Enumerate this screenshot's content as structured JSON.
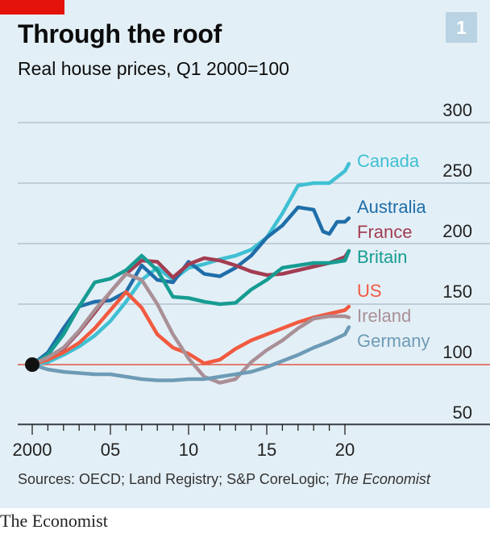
{
  "header": {
    "title": "Through the roof",
    "subtitle": "Real house prices, Q1 2000=100",
    "badge": "1"
  },
  "footer": {
    "source_prefix": "Sources: OECD; Land Registry; S&P CoreLogic; ",
    "source_italic": "The Economist",
    "brand": "The Economist"
  },
  "colors": {
    "panel": "#e3eff6",
    "accent_red": "#e3120b",
    "gridline": "#a8bac6",
    "baseline": "#e05545"
  },
  "chart_data": {
    "type": "line",
    "title": "Through the roof",
    "subtitle": "Real house prices, Q1 2000=100",
    "xlim": [
      2000,
      2021
    ],
    "ylim": [
      50,
      300
    ],
    "y_ticks": [
      50,
      100,
      150,
      200,
      250,
      300
    ],
    "x_ticks": [
      {
        "value": 2000,
        "label": "2000"
      },
      {
        "value": 2005,
        "label": "05"
      },
      {
        "value": 2010,
        "label": "10"
      },
      {
        "value": 2015,
        "label": "15"
      },
      {
        "value": 2020,
        "label": "20"
      }
    ],
    "baseline": 100,
    "start_point": {
      "x": 2000,
      "y": 100
    },
    "series": [
      {
        "name": "Canada",
        "color": "#3fc0d3",
        "x": [
          2000,
          2001,
          2002,
          2003,
          2004,
          2005,
          2006,
          2007,
          2008,
          2009,
          2010,
          2011,
          2012,
          2013,
          2014,
          2015,
          2016,
          2017,
          2018,
          2019,
          2020,
          2020.25
        ],
        "y": [
          100,
          102,
          108,
          115,
          124,
          136,
          152,
          170,
          180,
          170,
          180,
          183,
          187,
          190,
          195,
          205,
          225,
          248,
          250,
          250,
          260,
          266
        ]
      },
      {
        "name": "Australia",
        "color": "#1f6ea9",
        "x": [
          2000,
          2001,
          2002,
          2003,
          2004,
          2005,
          2006,
          2007,
          2008,
          2009,
          2010,
          2011,
          2012,
          2013,
          2014,
          2015,
          2016,
          2017,
          2018,
          2018.6,
          2019,
          2019.5,
          2020,
          2020.25
        ],
        "y": [
          100,
          110,
          130,
          148,
          152,
          153,
          160,
          182,
          170,
          168,
          185,
          175,
          173,
          180,
          190,
          205,
          215,
          230,
          228,
          210,
          208,
          218,
          218,
          221
        ]
      },
      {
        "name": "France",
        "color": "#a33d52",
        "x": [
          2000,
          2001,
          2002,
          2003,
          2004,
          2005,
          2006,
          2007,
          2008,
          2009,
          2010,
          2011,
          2012,
          2013,
          2014,
          2015,
          2016,
          2017,
          2018,
          2019,
          2020,
          2020.25
        ],
        "y": [
          100,
          105,
          113,
          127,
          143,
          160,
          175,
          186,
          185,
          172,
          183,
          188,
          186,
          182,
          177,
          174,
          175,
          178,
          181,
          184,
          189,
          194
        ]
      },
      {
        "name": "Britain",
        "color": "#169c92",
        "x": [
          2000,
          2001,
          2002,
          2003,
          2004,
          2005,
          2006,
          2007,
          2008,
          2009,
          2010,
          2011,
          2012,
          2013,
          2014,
          2015,
          2016,
          2017,
          2018,
          2019,
          2020,
          2020.25
        ],
        "y": [
          100,
          108,
          125,
          148,
          168,
          171,
          178,
          190,
          178,
          156,
          155,
          152,
          150,
          151,
          162,
          170,
          180,
          182,
          184,
          184,
          186,
          194
        ]
      },
      {
        "name": "US",
        "color": "#f15a40",
        "x": [
          2000,
          2001,
          2002,
          2003,
          2004,
          2005,
          2006,
          2007,
          2008,
          2009,
          2010,
          2011,
          2012,
          2013,
          2014,
          2015,
          2016,
          2017,
          2018,
          2019,
          2020,
          2020.25
        ],
        "y": [
          100,
          104,
          110,
          118,
          130,
          145,
          160,
          147,
          125,
          114,
          109,
          101,
          104,
          113,
          120,
          125,
          130,
          135,
          139,
          142,
          145,
          148
        ]
      },
      {
        "name": "Ireland",
        "color": "#a99096",
        "x": [
          2000,
          2001,
          2002,
          2003,
          2004,
          2005,
          2006,
          2007,
          2008,
          2009,
          2010,
          2011,
          2012,
          2013,
          2014,
          2015,
          2016,
          2017,
          2018,
          2019,
          2020,
          2020.25
        ],
        "y": [
          100,
          106,
          114,
          128,
          145,
          160,
          175,
          170,
          150,
          125,
          105,
          90,
          85,
          88,
          102,
          112,
          120,
          130,
          138,
          140,
          140,
          139
        ]
      },
      {
        "name": "Germany",
        "color": "#6d9bb6",
        "x": [
          2000,
          2001,
          2002,
          2003,
          2004,
          2005,
          2006,
          2007,
          2008,
          2009,
          2010,
          2011,
          2012,
          2013,
          2014,
          2015,
          2016,
          2017,
          2018,
          2019,
          2020,
          2020.25
        ],
        "y": [
          100,
          96,
          94,
          93,
          92,
          92,
          90,
          88,
          87,
          87,
          88,
          88,
          90,
          92,
          94,
          98,
          103,
          108,
          114,
          119,
          125,
          131
        ]
      }
    ]
  }
}
